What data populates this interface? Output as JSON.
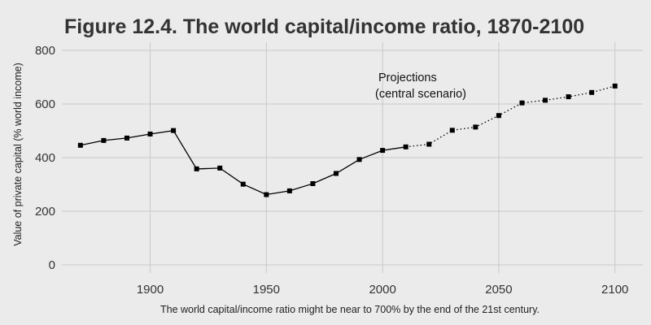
{
  "chart_data": {
    "type": "line",
    "title": "Figure 12.4. The world capital/income ratio, 1870-2100",
    "ylabel": "Value of private capital (% world income)",
    "caption": "The world capital/income ratio might be near to 700% by the end of the 21st century.",
    "annotation": [
      "Projections",
      "(central scenario)"
    ],
    "xlim": [
      1862,
      2112
    ],
    "ylim": [
      0,
      800
    ],
    "xticks": [
      1900,
      1950,
      2000,
      2050,
      2100
    ],
    "yticks": [
      0,
      200,
      400,
      600,
      800
    ],
    "grid": true,
    "series": [
      {
        "style": "solid",
        "x": [
          1870,
          1880,
          1890,
          1900,
          1910,
          1920,
          1930,
          1940,
          1950,
          1960,
          1970,
          1980,
          1990,
          2000,
          2010
        ],
        "y": [
          446,
          464,
          473,
          488,
          501,
          358,
          361,
          301,
          262,
          276,
          303,
          341,
          393,
          427,
          440
        ]
      },
      {
        "style": "dotted",
        "x": [
          2010,
          2020,
          2030,
          2040,
          2050,
          2060,
          2070,
          2080,
          2090,
          2100
        ],
        "y": [
          440,
          450,
          502,
          514,
          557,
          604,
          614,
          627,
          643,
          667
        ]
      }
    ],
    "colors": {
      "background": "#ebebeb",
      "grid": "#c8c8c8",
      "line": "#000000",
      "text": "#333333"
    }
  }
}
